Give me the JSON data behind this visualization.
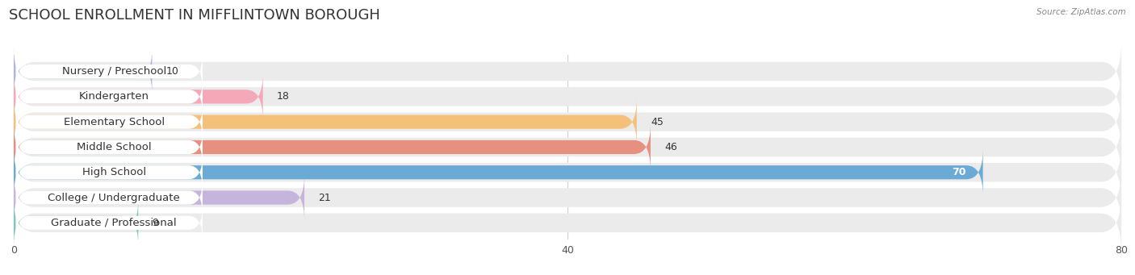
{
  "title": "SCHOOL ENROLLMENT IN MIFFLINTOWN BOROUGH",
  "source": "Source: ZipAtlas.com",
  "categories": [
    "Nursery / Preschool",
    "Kindergarten",
    "Elementary School",
    "Middle School",
    "High School",
    "College / Undergraduate",
    "Graduate / Professional"
  ],
  "values": [
    10,
    18,
    45,
    46,
    70,
    21,
    9
  ],
  "bar_colors": [
    "#b0b4df",
    "#f4a8b8",
    "#f5c07a",
    "#e89080",
    "#6aaad4",
    "#c5b4dc",
    "#7ec8c0"
  ],
  "bar_bg_color": "#ebebeb",
  "label_bg_color": "#ffffff",
  "xlim": [
    0,
    80
  ],
  "xticks": [
    0,
    40,
    80
  ],
  "title_fontsize": 13,
  "label_fontsize": 9.5,
  "value_fontsize": 9,
  "background_color": "#ffffff",
  "grid_color": "#d0d0d0",
  "text_color": "#333333",
  "source_color": "#888888"
}
